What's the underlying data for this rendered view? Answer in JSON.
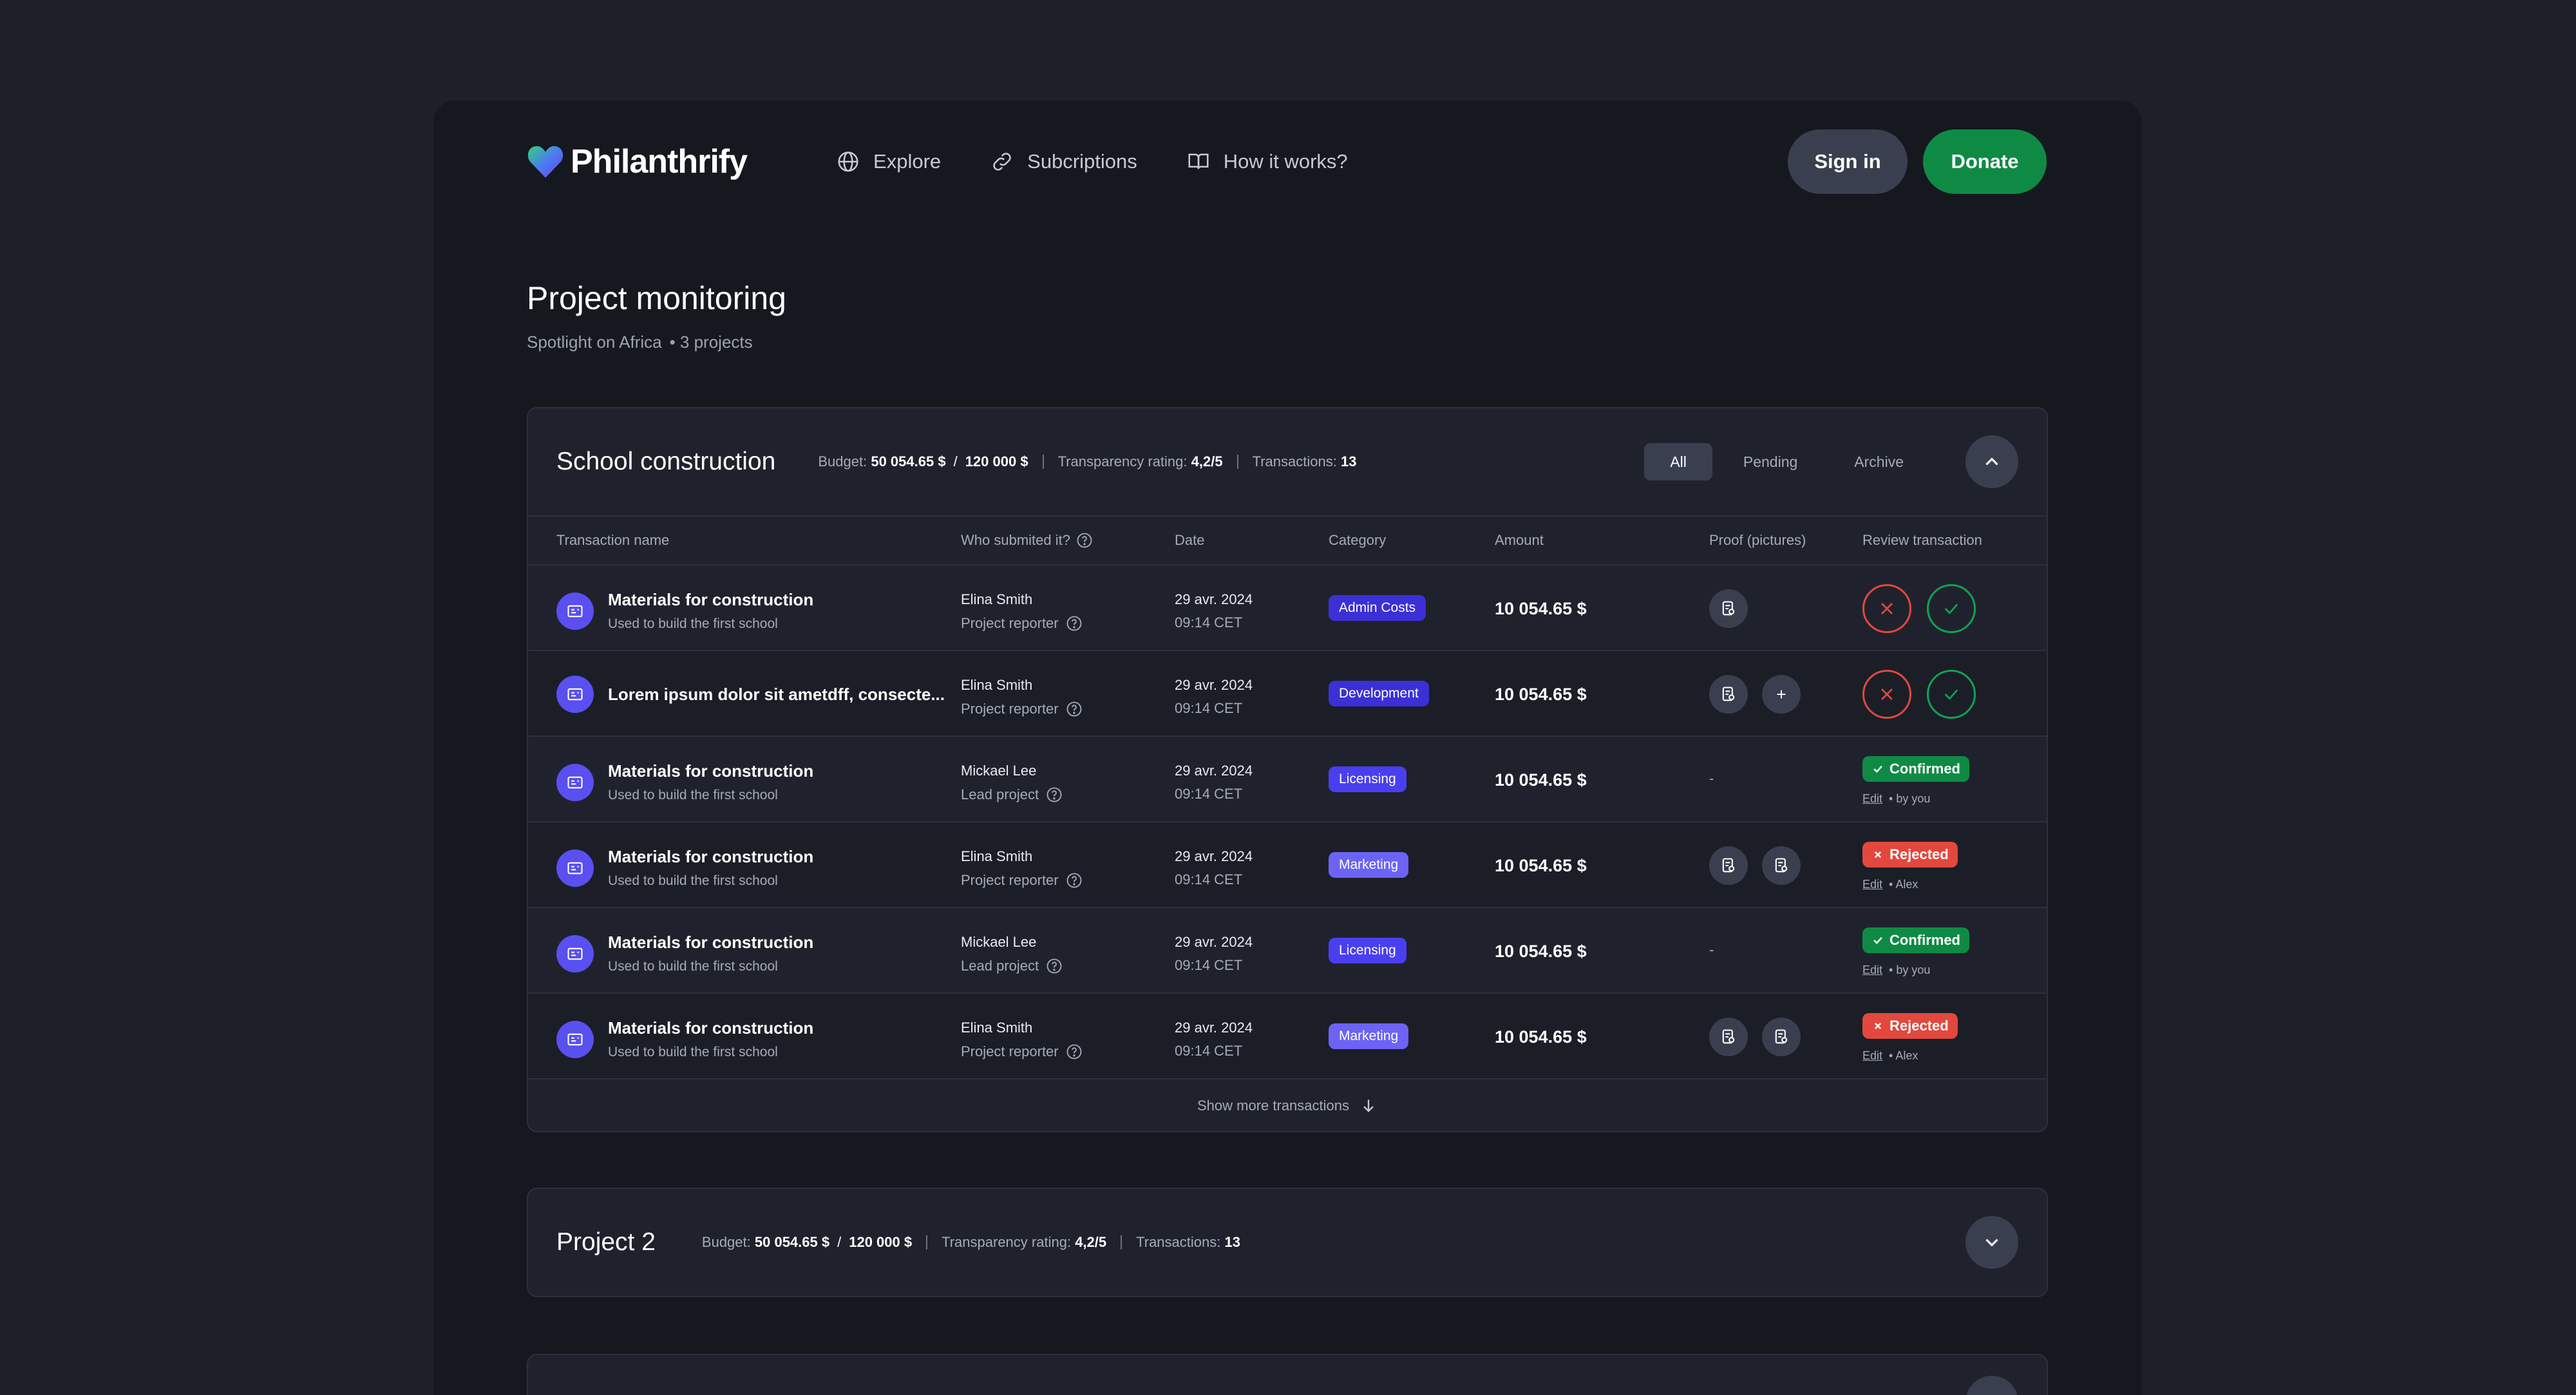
{
  "brand": {
    "name": "Philanthrify"
  },
  "nav": {
    "explore": "Explore",
    "subscriptions": "Subcriptions",
    "how": "How it works?"
  },
  "actions": {
    "signin": "Sign in",
    "donate": "Donate"
  },
  "page": {
    "title": "Project monitoring",
    "subtitle_left": "Spotlight on Africa",
    "subtitle_right": "• 3 projects"
  },
  "project1": {
    "title": "School construction",
    "budget_label": "Budget:",
    "budget_spent": "50 054.65 $",
    "budget_total": "120 000 $",
    "transparency_label": "Transparency rating:",
    "transparency_value": "4,2/5",
    "transactions_label": "Transactions:",
    "transactions_value": "13",
    "filters": {
      "all": "All",
      "pending": "Pending",
      "archive": "Archive"
    },
    "columns": {
      "name": "Transaction name",
      "who": "Who submited it?",
      "date": "Date",
      "category": "Category",
      "amount": "Amount",
      "proof": "Proof (pictures)",
      "review": "Review transaction"
    },
    "rows": [
      {
        "title": "Materials for construction",
        "sub": "Used to build the first school",
        "who": "Elina Smith",
        "role": "Project reporter",
        "date": "29 avr. 2024",
        "time": "09:14 CET",
        "category": "Admin Costs",
        "amount": "10 054.65 $"
      },
      {
        "title": "Lorem ipsum dolor sit ametdff, consecte...",
        "who": "Elina Smith",
        "role": "Project reporter",
        "date": "29 avr. 2024",
        "time": "09:14 CET",
        "category": "Development",
        "amount": "10 054.65 $",
        "plus": "+"
      },
      {
        "title": "Materials for construction",
        "sub": "Used to build the first school",
        "who": "Mickael Lee",
        "role": "Lead project",
        "date": "29 avr. 2024",
        "time": "09:14 CET",
        "category": "Licensing",
        "amount": "10 054.65 $",
        "proof_dash": "-",
        "status": "Confirmed",
        "edit": "Edit",
        "by": "• by you"
      },
      {
        "title": "Materials for construction",
        "sub": "Used to build the first school",
        "who": "Elina Smith",
        "role": "Project reporter",
        "date": "29 avr. 2024",
        "time": "09:14 CET",
        "category": "Marketing",
        "amount": "10 054.65 $",
        "status": "Rejected",
        "edit": "Edit",
        "by": "• Alex"
      },
      {
        "title": "Materials for construction",
        "sub": "Used to build the first school",
        "who": "Mickael Lee",
        "role": "Lead project",
        "date": "29 avr. 2024",
        "time": "09:14 CET",
        "category": "Licensing",
        "amount": "10 054.65 $",
        "proof_dash": "-",
        "status": "Confirmed",
        "edit": "Edit",
        "by": "• by you"
      },
      {
        "title": "Materials for construction",
        "sub": "Used to build the first school",
        "who": "Elina Smith",
        "role": "Project reporter",
        "date": "29 avr. 2024",
        "time": "09:14 CET",
        "category": "Marketing",
        "amount": "10 054.65 $",
        "status": "Rejected",
        "edit": "Edit",
        "by": "• Alex"
      }
    ],
    "show_more": "Show more transactions"
  },
  "project2": {
    "title": "Project 2",
    "budget_label": "Budget:",
    "budget_spent": "50 054.65 $",
    "budget_total": "120 000 $",
    "transparency_label": "Transparency rating:",
    "transparency_value": "4,2/5",
    "transactions_label": "Transactions:",
    "transactions_value": "13"
  },
  "colors": {
    "accent": "#5a4ff0",
    "admin_costs": "#3b30d6",
    "development": "#3b30d6",
    "licensing": "#4a3ff0",
    "marketing": "#6c63f5",
    "confirmed": "#0f8a45",
    "rejected": "#e2483d"
  },
  "icons": {
    "brand": "heart-logo-icon",
    "explore": "globe-icon",
    "subscriptions": "link-icon",
    "how": "book-icon",
    "collapse": "chevron-up-icon",
    "expand": "chevron-down-icon",
    "transaction": "receipt-icon",
    "help": "question-icon",
    "proof": "document-icon",
    "reject": "x-icon",
    "accept": "check-icon",
    "show_more": "arrow-down-icon"
  }
}
